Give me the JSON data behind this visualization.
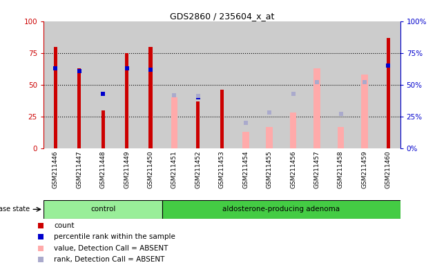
{
  "title": "GDS2860 / 235604_x_at",
  "samples": [
    "GSM211446",
    "GSM211447",
    "GSM211448",
    "GSM211449",
    "GSM211450",
    "GSM211451",
    "GSM211452",
    "GSM211453",
    "GSM211454",
    "GSM211455",
    "GSM211456",
    "GSM211457",
    "GSM211458",
    "GSM211459",
    "GSM211460"
  ],
  "count": [
    80,
    63,
    30,
    75,
    80,
    null,
    37,
    46,
    null,
    null,
    null,
    null,
    null,
    null,
    87
  ],
  "percentile_rank": [
    63,
    61,
    43,
    63,
    62,
    null,
    40,
    null,
    null,
    null,
    null,
    null,
    null,
    null,
    65
  ],
  "value_absent": [
    null,
    null,
    null,
    null,
    null,
    40,
    null,
    null,
    13,
    17,
    28,
    63,
    17,
    58,
    null
  ],
  "rank_absent": [
    null,
    null,
    null,
    null,
    null,
    42,
    41,
    null,
    20,
    28,
    43,
    52,
    27,
    52,
    null
  ],
  "control_samples": 5,
  "adenoma_samples": 10,
  "control_label": "control",
  "adenoma_label": "aldosterone-producing adenoma",
  "disease_state_label": "disease state",
  "ylim": [
    0,
    100
  ],
  "yticks": [
    0,
    25,
    50,
    75,
    100
  ],
  "count_color": "#cc0000",
  "percentile_color": "#0000cc",
  "value_absent_color": "#ffaaaa",
  "rank_absent_color": "#aaaacc",
  "control_bg": "#99ee99",
  "adenoma_bg": "#44cc44",
  "bar_bg": "#cccccc",
  "legend_items": [
    "count",
    "percentile rank within the sample",
    "value, Detection Call = ABSENT",
    "rank, Detection Call = ABSENT"
  ]
}
